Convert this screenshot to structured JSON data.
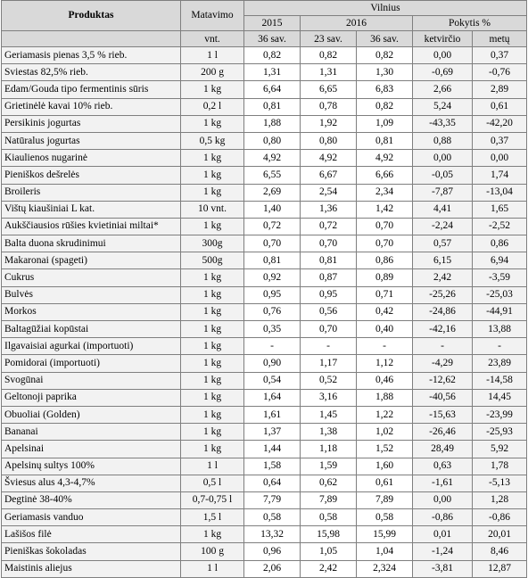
{
  "header": {
    "product_col": "Produktas",
    "unit_col": "Matavimo",
    "unit_sub": "vnt.",
    "region": "Vilnius",
    "year_2015": "2015",
    "year_2016": "2016",
    "change": "Pokytis %",
    "week_2015": "36 sav.",
    "week_2016_a": "23 sav.",
    "week_2016_b": "36 sav.",
    "change_quarter": "ketvirčio",
    "change_year": "metų"
  },
  "rows": [
    {
      "name": "Geriamasis pienas 3,5 % rieb.",
      "unit": "1 l",
      "v2015": "0,82",
      "v23": "0,82",
      "v36": "0,82",
      "q": "0,00",
      "y": "0,37"
    },
    {
      "name": "Sviestas 82,5% rieb.",
      "unit": "200 g",
      "v2015": "1,31",
      "v23": "1,31",
      "v36": "1,30",
      "q": "-0,69",
      "y": "-0,76"
    },
    {
      "name": "Edam/Gouda tipo fermentinis sūris",
      "unit": "1 kg",
      "v2015": "6,64",
      "v23": "6,65",
      "v36": "6,83",
      "q": "2,66",
      "y": "2,89"
    },
    {
      "name": "Grietinėlė kavai 10% rieb.",
      "unit": "0,2 l",
      "v2015": "0,81",
      "v23": "0,78",
      "v36": "0,82",
      "q": "5,24",
      "y": "0,61"
    },
    {
      "name": "Persikinis jogurtas",
      "unit": "1 kg",
      "v2015": "1,88",
      "v23": "1,92",
      "v36": "1,09",
      "q": "-43,35",
      "y": "-42,20"
    },
    {
      "name": "Natūralus jogurtas",
      "unit": "0,5 kg",
      "v2015": "0,80",
      "v23": "0,80",
      "v36": "0,81",
      "q": "0,88",
      "y": "0,37"
    },
    {
      "name": "Kiaulienos nugarinė",
      "unit": "1 kg",
      "v2015": "4,92",
      "v23": "4,92",
      "v36": "4,92",
      "q": "0,00",
      "y": "0,00"
    },
    {
      "name": "Pieniškos dešrelės",
      "unit": "1 kg",
      "v2015": "6,55",
      "v23": "6,67",
      "v36": "6,66",
      "q": "-0,05",
      "y": "1,74"
    },
    {
      "name": "Broileris",
      "unit": "1 kg",
      "v2015": "2,69",
      "v23": "2,54",
      "v36": "2,34",
      "q": "-7,87",
      "y": "-13,04"
    },
    {
      "name": "Vištų kiaušiniai L kat.",
      "unit": "10 vnt.",
      "v2015": "1,40",
      "v23": "1,36",
      "v36": "1,42",
      "q": "4,41",
      "y": "1,65"
    },
    {
      "name": "Aukščiausios rūšies kvietiniai miltai*",
      "unit": "1 kg",
      "v2015": "0,72",
      "v23": "0,72",
      "v36": "0,70",
      "q": "-2,24",
      "y": "-2,52"
    },
    {
      "name": "Balta duona skrudinimui",
      "unit": "300g",
      "v2015": "0,70",
      "v23": "0,70",
      "v36": "0,70",
      "q": "0,57",
      "y": "0,86"
    },
    {
      "name": "Makaronai (spageti)",
      "unit": "500g",
      "v2015": "0,81",
      "v23": "0,81",
      "v36": "0,86",
      "q": "6,15",
      "y": "6,94"
    },
    {
      "name": "Cukrus",
      "unit": "1 kg",
      "v2015": "0,92",
      "v23": "0,87",
      "v36": "0,89",
      "q": "2,42",
      "y": "-3,59"
    },
    {
      "name": "Bulvės",
      "unit": "1 kg",
      "v2015": "0,95",
      "v23": "0,95",
      "v36": "0,71",
      "q": "-25,26",
      "y": "-25,03"
    },
    {
      "name": "Morkos",
      "unit": "1 kg",
      "v2015": "0,76",
      "v23": "0,56",
      "v36": "0,42",
      "q": "-24,86",
      "y": "-44,91"
    },
    {
      "name": "Baltagūžiai kopūstai",
      "unit": "1 kg",
      "v2015": "0,35",
      "v23": "0,70",
      "v36": "0,40",
      "q": "-42,16",
      "y": "13,88"
    },
    {
      "name": "Ilgavaisiai agurkai (importuoti)",
      "unit": "1 kg",
      "v2015": "-",
      "v23": "-",
      "v36": "-",
      "q": "-",
      "y": "-"
    },
    {
      "name": "Pomidorai (importuoti)",
      "unit": "1 kg",
      "v2015": "0,90",
      "v23": "1,17",
      "v36": "1,12",
      "q": "-4,29",
      "y": "23,89"
    },
    {
      "name": "Svogūnai",
      "unit": "1 kg",
      "v2015": "0,54",
      "v23": "0,52",
      "v36": "0,46",
      "q": "-12,62",
      "y": "-14,58"
    },
    {
      "name": "Geltonoji paprika",
      "unit": "1 kg",
      "v2015": "1,64",
      "v23": "3,16",
      "v36": "1,88",
      "q": "-40,56",
      "y": "14,45"
    },
    {
      "name": "Obuoliai (Golden)",
      "unit": "1 kg",
      "v2015": "1,61",
      "v23": "1,45",
      "v36": "1,22",
      "q": "-15,63",
      "y": "-23,99"
    },
    {
      "name": "Bananai",
      "unit": "1 kg",
      "v2015": "1,37",
      "v23": "1,38",
      "v36": "1,02",
      "q": "-26,46",
      "y": "-25,93"
    },
    {
      "name": "Apelsinai",
      "unit": "1 kg",
      "v2015": "1,44",
      "v23": "1,18",
      "v36": "1,52",
      "q": "28,49",
      "y": "5,92"
    },
    {
      "name": "Apelsinų sultys 100%",
      "unit": "1 l",
      "v2015": "1,58",
      "v23": "1,59",
      "v36": "1,60",
      "q": "0,63",
      "y": "1,78"
    },
    {
      "name": "Šviesus alus 4,3-4,7%",
      "unit": "0,5 l",
      "v2015": "0,64",
      "v23": "0,62",
      "v36": "0,61",
      "q": "-1,61",
      "y": "-5,13"
    },
    {
      "name": "Degtinė 38-40%",
      "unit": "0,7-0,75 l",
      "v2015": "7,79",
      "v23": "7,89",
      "v36": "7,89",
      "q": "0,00",
      "y": "1,28"
    },
    {
      "name": "Geriamasis vanduo",
      "unit": "1,5 l",
      "v2015": "0,58",
      "v23": "0,58",
      "v36": "0,58",
      "q": "-0,86",
      "y": "-0,86"
    },
    {
      "name": "Lašišos filė",
      "unit": "1 kg",
      "v2015": "13,32",
      "v23": "15,98",
      "v36": "15,99",
      "q": "0,01",
      "y": "20,01"
    },
    {
      "name": "Pieniškas šokoladas",
      "unit": "100 g",
      "v2015": "0,96",
      "v23": "1,05",
      "v36": "1,04",
      "q": "-1,24",
      "y": "8,46"
    },
    {
      "name": "Maistinis aliejus",
      "unit": "1 l",
      "v2015": "2,06",
      "v23": "2,42",
      "v36": "2,324",
      "q": "-3,81",
      "y": "12,87"
    }
  ]
}
